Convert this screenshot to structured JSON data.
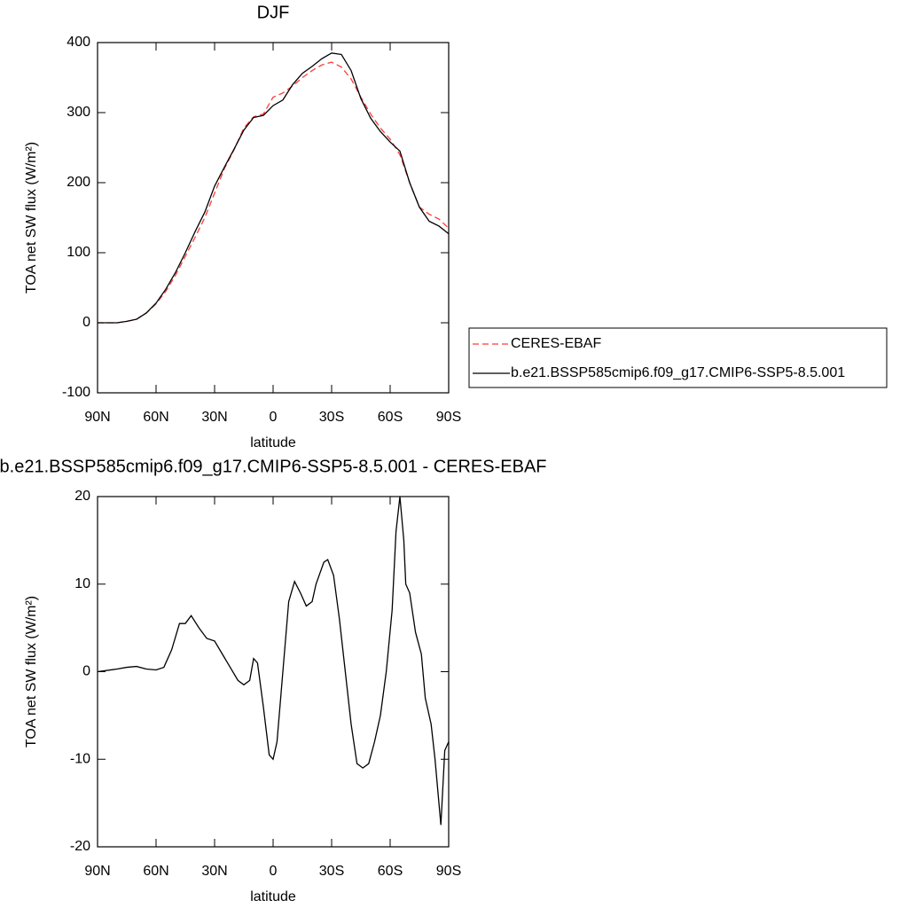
{
  "chart_data": [
    {
      "type": "line",
      "title": "DJF",
      "xlabel": "latitude",
      "ylabel": "TOA net SW flux (W/m²)",
      "x": [
        90,
        85,
        80,
        75,
        70,
        65,
        60,
        55,
        50,
        45,
        40,
        35,
        30,
        25,
        20,
        15,
        10,
        5,
        0,
        -5,
        -10,
        -15,
        -20,
        -25,
        -30,
        -35,
        -40,
        -45,
        -50,
        -55,
        -60,
        -65,
        -70,
        -75,
        -80,
        -85,
        -90
      ],
      "series": [
        {
          "name": "CERES-EBAF",
          "color": "#ff3b3b",
          "style": "dashed",
          "values": [
            0,
            0,
            0,
            2,
            5,
            14,
            27,
            45,
            68,
            95,
            122,
            150,
            185,
            220,
            247,
            278,
            294,
            298,
            322,
            328,
            338,
            350,
            360,
            368,
            372,
            365,
            348,
            322,
            298,
            278,
            262,
            240,
            200,
            165,
            155,
            148,
            135
          ]
        },
        {
          "name": "b.e21.BSSP585cmip6.f09_g17.CMIP6-SSP5-8.5.001",
          "color": "#000000",
          "style": "solid",
          "values": [
            0,
            0,
            0,
            2,
            5,
            14,
            28,
            48,
            72,
            100,
            130,
            158,
            195,
            222,
            248,
            275,
            293,
            296,
            310,
            318,
            340,
            356,
            366,
            377,
            385,
            383,
            360,
            320,
            292,
            273,
            258,
            245,
            200,
            165,
            145,
            138,
            127
          ]
        }
      ],
      "xlim": [
        90,
        -90
      ],
      "xticks": [
        {
          "value": 90,
          "label": "90N"
        },
        {
          "value": 60,
          "label": "60N"
        },
        {
          "value": 30,
          "label": "30N"
        },
        0,
        {
          "value": -30,
          "label": "30S"
        },
        {
          "value": -60,
          "label": "60S"
        },
        {
          "value": -90,
          "label": "90S"
        }
      ],
      "ylim": [
        -100,
        400
      ],
      "yticks": [
        -100,
        0,
        100,
        200,
        300,
        400
      ],
      "legend": "right"
    },
    {
      "type": "line",
      "title": "b.e21.BSSP585cmip6.f09_g17.CMIP6-SSP5-8.5.001 - CERES-EBAF",
      "xlabel": "latitude",
      "ylabel": "TOA net SW flux (W/m²)",
      "x": [
        90,
        80,
        75,
        70,
        65,
        60,
        56,
        52,
        48,
        45,
        42,
        38,
        34,
        30,
        26,
        22,
        18,
        15,
        12,
        10,
        8,
        5,
        2,
        0,
        -2,
        -5,
        -8,
        -11,
        -14,
        -17,
        -20,
        -22,
        -26,
        -28,
        -31,
        -34,
        -37,
        -40,
        -43,
        -46,
        -49,
        -52,
        -55,
        -58,
        -61,
        -63,
        -65,
        -67,
        -68,
        -70,
        -72,
        -73,
        -76,
        -78,
        -81,
        -83,
        -86,
        -88,
        -90
      ],
      "series": [
        {
          "color": "#000000",
          "style": "solid",
          "values": [
            0,
            0.3,
            0.5,
            0.6,
            0.3,
            0.2,
            0.5,
            2.5,
            5.5,
            5.5,
            6.4,
            5,
            3.8,
            3.5,
            2,
            0.5,
            -1,
            -1.5,
            -1,
            1.5,
            1,
            -4,
            -9.5,
            -10,
            -8,
            0,
            8,
            10.3,
            9,
            7.5,
            8,
            10,
            12.5,
            12.8,
            11,
            6,
            0,
            -6,
            -10.5,
            -11,
            -10.5,
            -8,
            -5,
            0,
            7,
            16,
            20,
            15,
            10,
            9,
            6,
            4.5,
            2,
            -3,
            -6,
            -10,
            -17.5,
            -9,
            -8
          ]
        }
      ],
      "xlim": [
        90,
        -90
      ],
      "xticks": [
        {
          "value": 90,
          "label": "90N"
        },
        {
          "value": 60,
          "label": "60N"
        },
        {
          "value": 30,
          "label": "30N"
        },
        0,
        {
          "value": -30,
          "label": "30S"
        },
        {
          "value": -60,
          "label": "60S"
        },
        {
          "value": -90,
          "label": "90S"
        }
      ],
      "ylim": [
        -20,
        20
      ],
      "yticks": [
        -20,
        -10,
        0,
        10,
        20
      ]
    }
  ]
}
